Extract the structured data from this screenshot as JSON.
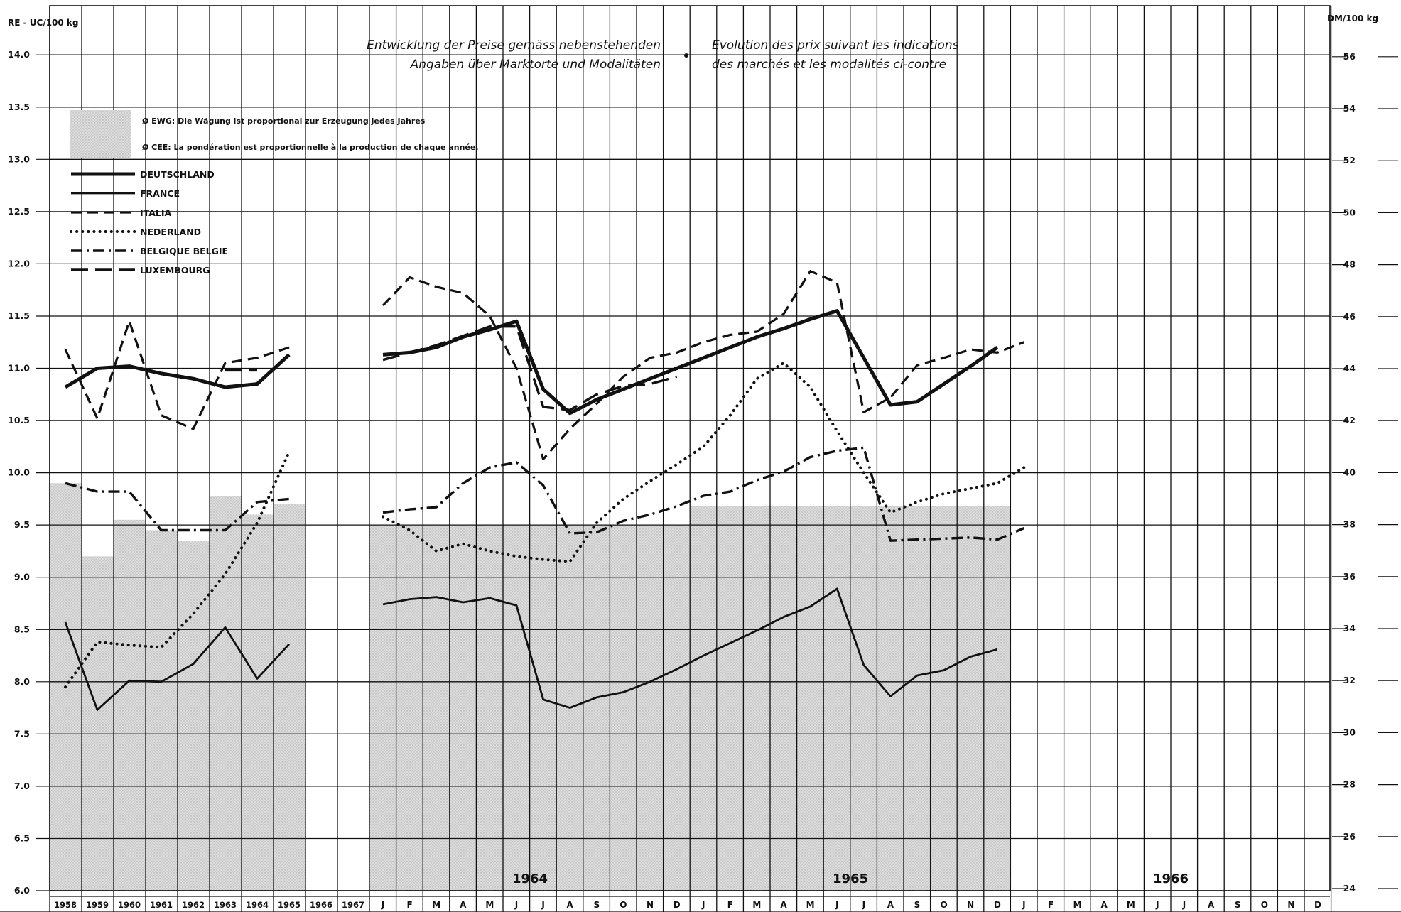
{
  "chart_data": {
    "type": "line",
    "title_de": [
      "Entwicklung der Preise gemäss nebenstehenden",
      "Angaben über Marktorte und Modalitäten"
    ],
    "title_fr": [
      "Evolution des prix suivant les indications",
      "des marchés et les modalités ci-contre"
    ],
    "ylabel_left": "RE - UC/100 kg",
    "ylabel_right": "DM/100 kg",
    "ylim_left": [
      6.0,
      14.0
    ],
    "ylim_right": [
      24,
      56
    ],
    "yticks_left": [
      "14.0",
      "13.5",
      "13.0",
      "12.5",
      "12.0",
      "11.5",
      "11.0",
      "10.5",
      "10.0",
      "9.5",
      "9.0",
      "8.5",
      "8.0",
      "7.5",
      "7.0",
      "6.5",
      "6.0"
    ],
    "yticks_right": [
      "56",
      "54",
      "52",
      "50",
      "48",
      "46",
      "44",
      "42",
      "40",
      "38",
      "36",
      "34",
      "32",
      "30",
      "28",
      "26",
      "24"
    ],
    "x_year_labels": [
      "1958",
      "1959",
      "1960",
      "1961",
      "1962",
      "1963",
      "1964",
      "1965",
      "1966",
      "1967"
    ],
    "x_month_labels": [
      "J",
      "F",
      "M",
      "A",
      "M",
      "J",
      "J",
      "A",
      "S",
      "O",
      "N",
      "D",
      "J",
      "F",
      "M",
      "A",
      "M",
      "J",
      "J",
      "A",
      "S",
      "O",
      "N",
      "D",
      "J",
      "F",
      "M",
      "A",
      "M",
      "J",
      "J",
      "A",
      "S",
      "O",
      "N",
      "D"
    ],
    "period_labels": [
      "1964",
      "1965",
      "1966"
    ],
    "legend_notes": [
      "Ø EWG: Die Wägung ist proportional zur Erzeugung jedes Jahres",
      "Ø CEE: La pondération est proportionnelle à la production de chaque année."
    ],
    "ewg_average_annual": [
      9.9,
      9.2,
      9.55,
      9.45,
      9.35,
      9.78,
      9.6,
      9.7
    ],
    "ewg_average_monthly": [
      9.5,
      9.5,
      9.5,
      9.5,
      9.5,
      9.5,
      9.5,
      9.5,
      9.5,
      9.5,
      9.5,
      9.5,
      9.68,
      9.68,
      9.68,
      9.68,
      9.68,
      9.68,
      9.68,
      9.68,
      9.68,
      9.68,
      9.68,
      9.68
    ],
    "series": [
      {
        "name": "DEUTSCHLAND",
        "annual": [
          10.82,
          11.0,
          11.02,
          10.95,
          10.9,
          10.82,
          10.85,
          11.13
        ],
        "monthly": [
          11.13,
          11.15,
          11.2,
          11.3,
          11.37,
          11.45,
          10.8,
          10.57,
          10.7,
          10.8,
          10.9,
          11.0,
          11.1,
          11.2,
          11.3,
          11.38,
          11.47,
          11.55,
          11.1,
          10.65,
          10.68,
          10.85,
          11.02,
          11.2
        ]
      },
      {
        "name": "FRANCE",
        "annual": [
          8.57,
          7.73,
          8.01,
          8.0,
          8.17,
          8.52,
          8.03,
          8.36
        ],
        "monthly": [
          8.74,
          8.79,
          8.81,
          8.76,
          8.8,
          8.73,
          7.83,
          7.75,
          7.85,
          7.9,
          8.0,
          8.12,
          8.25,
          8.37,
          8.49,
          8.62,
          8.72,
          8.89,
          8.16,
          7.86,
          8.06,
          8.11,
          8.24,
          8.31
        ]
      },
      {
        "name": "ITALIA",
        "annual": [
          11.18,
          10.52,
          11.45,
          10.55,
          10.42,
          11.05,
          11.1,
          11.2
        ],
        "monthly": [
          11.6,
          11.87,
          11.78,
          11.72,
          11.5,
          11.0,
          10.13,
          10.42,
          10.66,
          10.92,
          11.1,
          11.15,
          11.25,
          11.32,
          11.35,
          11.52,
          11.93,
          11.82,
          10.58,
          10.72,
          11.03,
          11.1,
          11.18,
          11.15,
          11.25
        ]
      },
      {
        "name": "NEDERLAND",
        "annual": [
          7.95,
          8.38,
          8.35,
          8.33,
          8.65,
          9.03,
          9.52,
          10.2
        ],
        "monthly": [
          9.58,
          9.45,
          9.25,
          9.32,
          9.25,
          9.2,
          9.17,
          9.15,
          9.52,
          9.75,
          9.92,
          10.08,
          10.25,
          10.55,
          10.9,
          11.05,
          10.82,
          10.4,
          10.0,
          9.62,
          9.72,
          9.8,
          9.85,
          9.9,
          10.05
        ]
      },
      {
        "name": "BELGIQUE BELGIE",
        "annual": [
          9.9,
          9.82,
          9.82,
          9.45,
          9.45,
          9.45,
          9.72,
          9.75
        ],
        "monthly": [
          9.62,
          9.65,
          9.67,
          9.9,
          10.05,
          10.1,
          9.88,
          9.42,
          9.43,
          9.54,
          9.6,
          9.68,
          9.78,
          9.82,
          9.93,
          10.01,
          10.15,
          10.21,
          10.24,
          9.35,
          9.36,
          9.37,
          9.38,
          9.36,
          9.47
        ]
      },
      {
        "name": "LUXEMBOURG",
        "annual": [
          null,
          null,
          null,
          null,
          null,
          10.98,
          10.98,
          null
        ],
        "monthly": [
          11.08,
          11.15,
          11.22,
          11.31,
          11.4,
          11.4,
          10.63,
          10.6,
          10.75,
          10.83,
          10.85,
          10.92
        ]
      }
    ]
  }
}
